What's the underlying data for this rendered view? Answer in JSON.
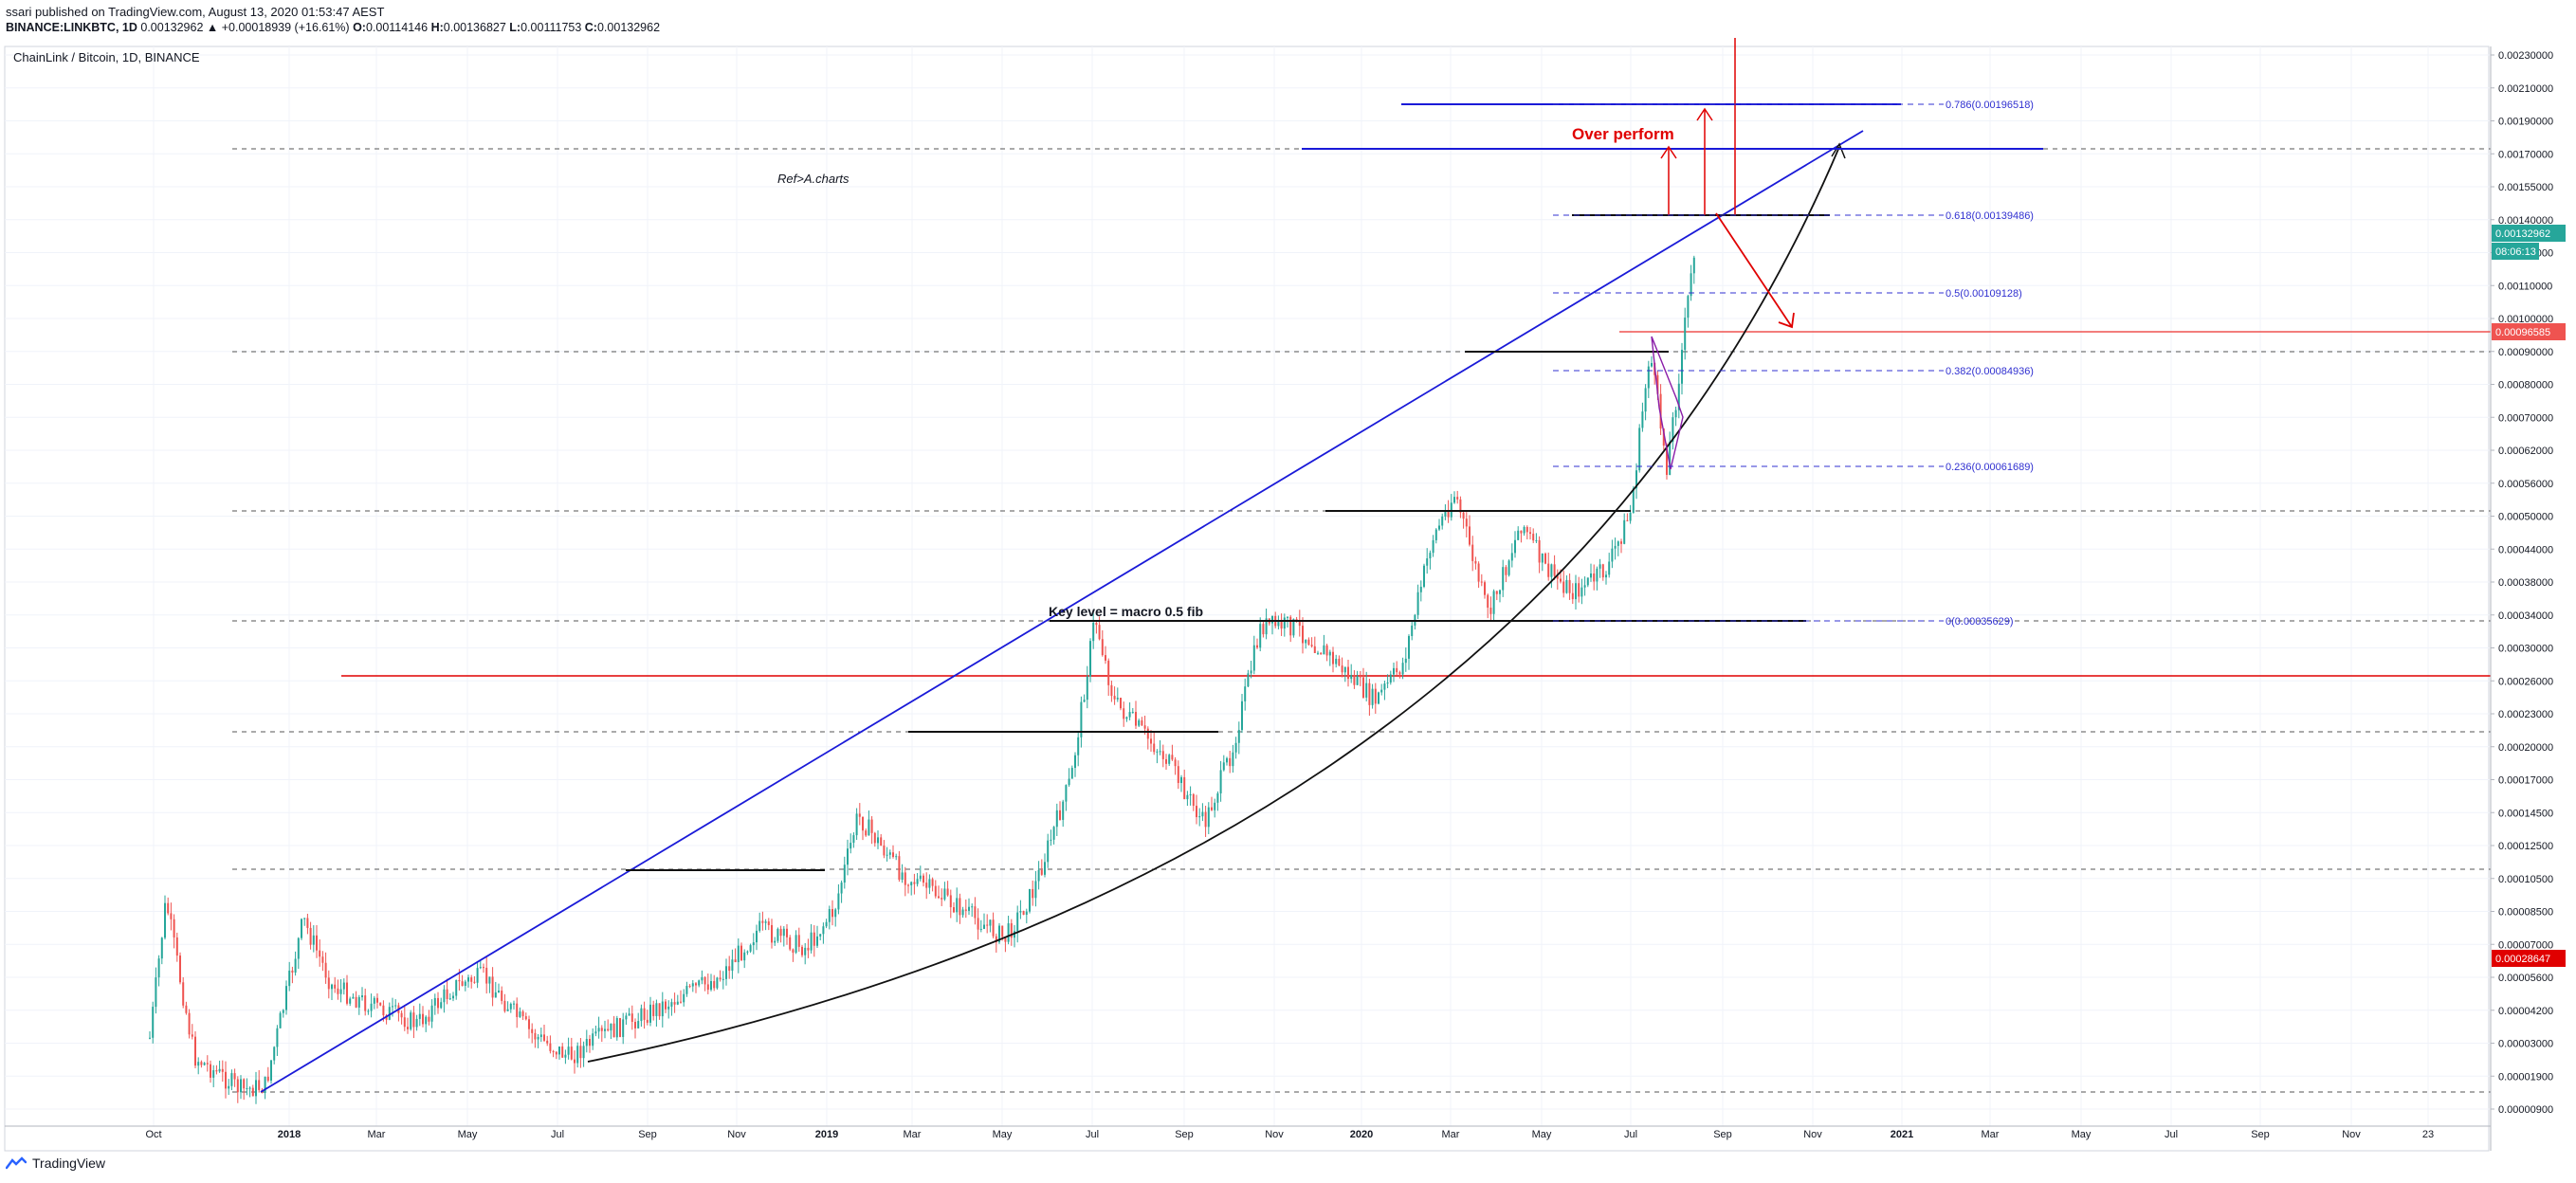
{
  "header": {
    "line1": "ssari published on TradingView.com, August 13, 2020 01:53:47 AEST",
    "symbol": "BINANCE:LINKBTC, 1D",
    "change": "0.00132962 ▲ +0.00018939 (+16.61%)",
    "o_label": "O:",
    "o": "0.00114146",
    "h_label": "H:",
    "h": "0.00136827",
    "l_label": "L:",
    "l": "0.00111753",
    "c_label": "C:",
    "c": "0.00132962"
  },
  "footer": {
    "brand": "TradingView"
  },
  "colors": {
    "up": "#26a69a",
    "down": "#ef5350",
    "blue": "#1a1ad8",
    "red": "#e00000",
    "fib": "#3030d0",
    "axis": "#787b86"
  },
  "chart_data": {
    "type": "candlestick",
    "title": "ChainLink / Bitcoin, 1D, BINANCE",
    "annotation_ref": "Ref>A.charts",
    "annotation_key": "Key level = macro 0.5 fib",
    "annotation_over": "Over perform",
    "x_ticks": [
      "Oct",
      "2018",
      "Mar",
      "May",
      "Jul",
      "Sep",
      "Nov",
      "2019",
      "Mar",
      "May",
      "Jul",
      "Sep",
      "Nov",
      "2020",
      "Mar",
      "May",
      "Jul",
      "Sep",
      "Nov",
      "2021",
      "Mar",
      "May",
      "Jul",
      "Sep",
      "Nov",
      "23"
    ],
    "y_ticks": [
      "0.00230000",
      "0.00210000",
      "0.00190000",
      "0.00170000",
      "0.00155000",
      "0.00140000",
      "0.00125000",
      "0.00110000",
      "0.00100000",
      "0.00090000",
      "0.00080000",
      "0.00070000",
      "0.00062000",
      "0.00056000",
      "0.00050000",
      "0.00044000",
      "0.00038000",
      "0.00034000",
      "0.00030000",
      "0.00026000",
      "0.00023000",
      "0.00020000",
      "0.00017000",
      "0.00014500",
      "0.00012500",
      "0.00010500",
      "0.00008500",
      "0.00007000",
      "0.00005600",
      "0.00004200",
      "0.00003000",
      "0.00001900",
      "0.00000900"
    ],
    "price_labels": [
      {
        "text": "0.00132962",
        "color": "#26a69a"
      },
      {
        "text": "08:06:13",
        "color": "#26a69a"
      },
      {
        "text": "0.00096585",
        "color": "#ef5350"
      },
      {
        "text": "0.00028647",
        "color": "#e00000"
      }
    ],
    "fib_levels": [
      {
        "label": "0.786(0.00196518)"
      },
      {
        "label": "0.618(0.00139486)"
      },
      {
        "label": "0.5(0.00109128)"
      },
      {
        "label": "0.382(0.00084936)"
      },
      {
        "label": "0.236(0.00061689)"
      },
      {
        "label": "0(0.00035629)"
      }
    ]
  }
}
